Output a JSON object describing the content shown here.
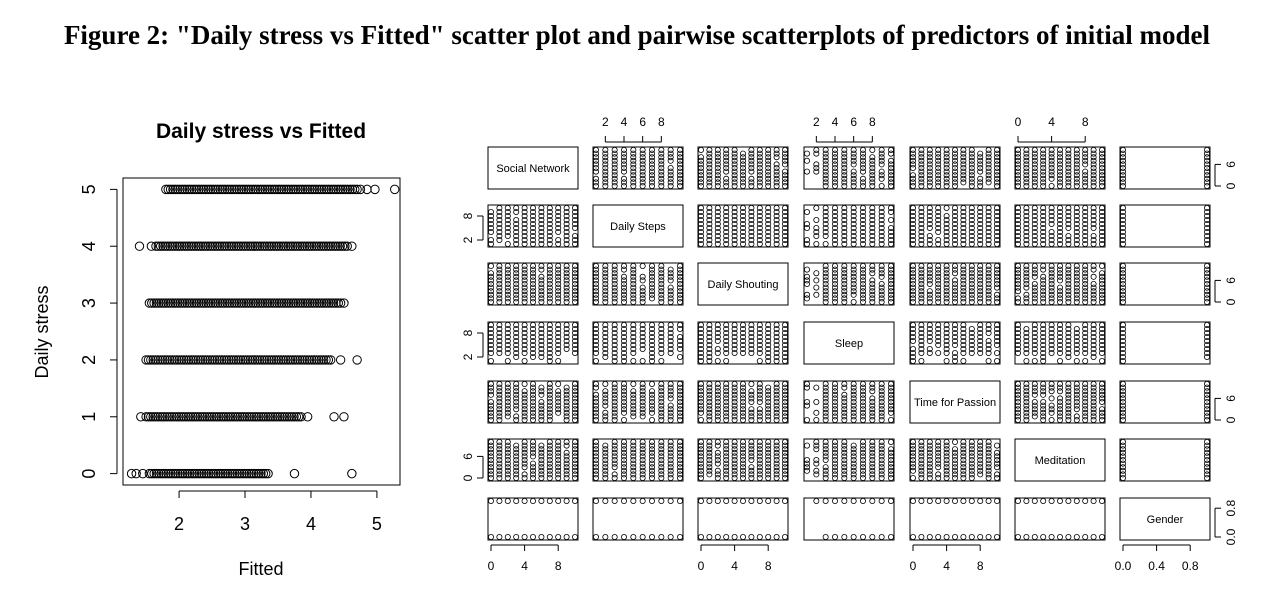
{
  "figure_title": "Figure 2: \"Daily stress vs Fitted\" scatter plot and pairwise scatterplots of predictors of initial model",
  "chart_data": [
    {
      "type": "scatter",
      "title": "Daily stress vs Fitted",
      "xlabel": "Fitted",
      "ylabel": "Daily stress",
      "xlim": [
        1.15,
        5.35
      ],
      "ylim": [
        -0.2,
        5.2
      ],
      "x_ticks": [
        "2",
        "3",
        "4",
        "5"
      ],
      "x_tick_values": [
        2,
        3,
        4,
        5
      ],
      "y_ticks": [
        "0",
        "1",
        "2",
        "3",
        "4",
        "5"
      ],
      "y_tick_values": [
        0,
        1,
        2,
        3,
        4,
        5
      ],
      "series": [
        {
          "points": [
            {
              "y": 5,
              "x_min": 1.8,
              "x_max": 4.7,
              "outliers": [
                4.75,
                4.85,
                4.97,
                5.27
              ]
            },
            {
              "y": 4,
              "x_min": 1.65,
              "x_max": 4.55,
              "outliers": [
                1.4,
                1.58,
                4.62
              ]
            },
            {
              "y": 3,
              "x_min": 1.55,
              "x_max": 4.45,
              "outliers": [
                4.5
              ]
            },
            {
              "y": 2,
              "x_min": 1.5,
              "x_max": 4.3,
              "outliers": [
                4.45,
                4.7
              ]
            },
            {
              "y": 1,
              "x_min": 1.5,
              "x_max": 3.85,
              "outliers": [
                1.42,
                3.95,
                4.35,
                4.5
              ]
            },
            {
              "y": 0,
              "x_min": 1.55,
              "x_max": 3.35,
              "outliers": [
                1.28,
                1.35,
                1.45,
                3.75,
                4.62
              ]
            }
          ]
        }
      ]
    },
    {
      "type": "scatter",
      "subtype": "pairs",
      "variables": [
        "Social Network",
        "Daily Steps",
        "Daily Shouting",
        "Sleep",
        "Time for Passion",
        "Meditation",
        "Gender"
      ],
      "ranges": [
        [
          0,
          10
        ],
        [
          1,
          10
        ],
        [
          0,
          10
        ],
        [
          1,
          10
        ],
        [
          0,
          10
        ],
        [
          0,
          10
        ],
        [
          0,
          1
        ]
      ],
      "top_ticks": [
        {
          "col": 1,
          "labels": [
            "2",
            "4",
            "6",
            "8"
          ],
          "values": [
            2,
            4,
            6,
            8
          ]
        },
        {
          "col": 3,
          "labels": [
            "2",
            "4",
            "6",
            "8"
          ],
          "values": [
            2,
            4,
            6,
            8
          ]
        },
        {
          "col": 5,
          "labels": [
            "0",
            "4",
            "8"
          ],
          "values": [
            0,
            4,
            8
          ]
        }
      ],
      "bottom_ticks": [
        {
          "col": 0,
          "labels": [
            "0",
            "4",
            "8"
          ],
          "values": [
            0,
            4,
            8
          ]
        },
        {
          "col": 2,
          "labels": [
            "0",
            "4",
            "8"
          ],
          "values": [
            0,
            4,
            8
          ]
        },
        {
          "col": 4,
          "labels": [
            "0",
            "4",
            "8"
          ],
          "values": [
            0,
            4,
            8
          ]
        },
        {
          "col": 6,
          "labels": [
            "0.0",
            "0.4",
            "0.8"
          ],
          "values": [
            0,
            0.4,
            0.8
          ]
        }
      ],
      "left_ticks": [
        {
          "row": 1,
          "labels": [
            "2",
            "8"
          ],
          "values": [
            2,
            8
          ]
        },
        {
          "row": 3,
          "labels": [
            "2",
            "8"
          ],
          "values": [
            2,
            8
          ]
        },
        {
          "row": 5,
          "labels": [
            "0",
            "6"
          ],
          "values": [
            0,
            6
          ]
        }
      ],
      "right_ticks": [
        {
          "row": 0,
          "labels": [
            "0",
            "6"
          ],
          "values": [
            0,
            6
          ]
        },
        {
          "row": 2,
          "labels": [
            "0",
            "6"
          ],
          "values": [
            0,
            6
          ]
        },
        {
          "row": 4,
          "labels": [
            "0",
            "6"
          ],
          "values": [
            0,
            6
          ]
        },
        {
          "row": 6,
          "labels": [
            "0.0",
            "0.8"
          ],
          "values": [
            0,
            0.8
          ]
        }
      ]
    }
  ]
}
